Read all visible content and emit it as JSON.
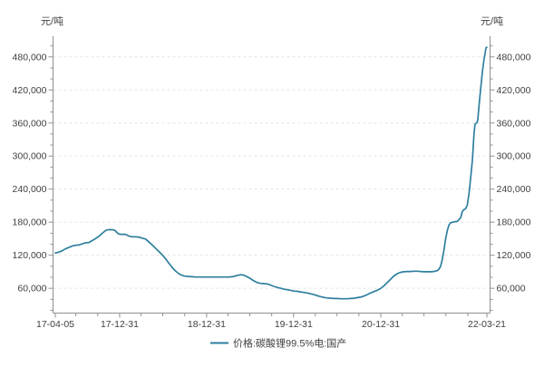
{
  "chart_data": {
    "type": "line",
    "title": "",
    "y_unit_left": "元/吨",
    "y_unit_right": "元/吨",
    "x_tick_labels": [
      "17-04-05",
      "17-12-31",
      "18-12-31",
      "19-12-31",
      "20-12-31",
      "22-03-21"
    ],
    "y_major_ticks": [
      60000,
      120000,
      180000,
      240000,
      300000,
      360000,
      420000,
      480000
    ],
    "y_minor_step": 20000,
    "y_minor_range": [
      20000,
      500000
    ],
    "ylim": [
      15000,
      517500
    ],
    "grid": "horizontal-dashed",
    "legend_position": "bottom-center",
    "colors": {
      "line": "#2e7f9e",
      "axis": "#909090",
      "grid": "#e4e4e4",
      "text": "#404040"
    },
    "series": [
      {
        "name": "价格:碳酸锂99.5%电:国产",
        "color": "#2e7f9e",
        "points": [
          [
            "17-04-05",
            124000
          ],
          [
            "17-04-19",
            125500
          ],
          [
            "17-05-03",
            128000
          ],
          [
            "17-05-17",
            131500
          ],
          [
            "17-05-31",
            134000
          ],
          [
            "17-06-14",
            136500
          ],
          [
            "17-06-28",
            138000
          ],
          [
            "17-07-12",
            138500
          ],
          [
            "17-07-26",
            140500
          ],
          [
            "17-08-09",
            142500
          ],
          [
            "17-08-23",
            143000
          ],
          [
            "17-09-06",
            146500
          ],
          [
            "17-09-20",
            150000
          ],
          [
            "17-10-04",
            154000
          ],
          [
            "17-10-18",
            159500
          ],
          [
            "17-11-01",
            164500
          ],
          [
            "17-11-08",
            166000
          ],
          [
            "17-11-22",
            166500
          ],
          [
            "17-12-06",
            166000
          ],
          [
            "17-12-13",
            164500
          ],
          [
            "17-12-20",
            161000
          ],
          [
            "17-12-27",
            158500
          ],
          [
            "18-01-10",
            158000
          ],
          [
            "18-01-24",
            158000
          ],
          [
            "18-02-07",
            155000
          ],
          [
            "18-02-21",
            153500
          ],
          [
            "18-03-07",
            153500
          ],
          [
            "18-03-21",
            153000
          ],
          [
            "18-04-04",
            151000
          ],
          [
            "18-04-18",
            149500
          ],
          [
            "18-05-02",
            144500
          ],
          [
            "18-05-16",
            139000
          ],
          [
            "18-05-30",
            133000
          ],
          [
            "18-06-13",
            127000
          ],
          [
            "18-06-27",
            121000
          ],
          [
            "18-07-11",
            114000
          ],
          [
            "18-07-25",
            106000
          ],
          [
            "18-08-08",
            98000
          ],
          [
            "18-08-22",
            91500
          ],
          [
            "18-09-05",
            86500
          ],
          [
            "18-09-19",
            83500
          ],
          [
            "18-10-03",
            82000
          ],
          [
            "18-10-17",
            81500
          ],
          [
            "18-10-31",
            81000
          ],
          [
            "18-11-14",
            80500
          ],
          [
            "18-11-28",
            80500
          ],
          [
            "18-12-12",
            80500
          ],
          [
            "18-12-26",
            80500
          ],
          [
            "19-01-09",
            80500
          ],
          [
            "19-01-23",
            80500
          ],
          [
            "19-02-06",
            80500
          ],
          [
            "19-02-20",
            80500
          ],
          [
            "19-03-06",
            80500
          ],
          [
            "19-03-20",
            80500
          ],
          [
            "19-04-03",
            80500
          ],
          [
            "19-04-17",
            81000
          ],
          [
            "19-04-24",
            81500
          ],
          [
            "19-05-08",
            83500
          ],
          [
            "19-05-22",
            84500
          ],
          [
            "19-06-05",
            84000
          ],
          [
            "19-06-19",
            81000
          ],
          [
            "19-07-03",
            77500
          ],
          [
            "19-07-17",
            73500
          ],
          [
            "19-07-31",
            70500
          ],
          [
            "19-08-14",
            69000
          ],
          [
            "19-08-28",
            68500
          ],
          [
            "19-09-11",
            68000
          ],
          [
            "19-09-25",
            66000
          ],
          [
            "19-10-09",
            63500
          ],
          [
            "19-10-23",
            61500
          ],
          [
            "19-11-06",
            60000
          ],
          [
            "19-11-20",
            58500
          ],
          [
            "19-12-04",
            57500
          ],
          [
            "19-12-18",
            56500
          ],
          [
            "20-01-01",
            55000
          ],
          [
            "20-01-15",
            54500
          ],
          [
            "20-01-29",
            53500
          ],
          [
            "20-02-12",
            52500
          ],
          [
            "20-02-26",
            51500
          ],
          [
            "20-03-11",
            50000
          ],
          [
            "20-03-25",
            48500
          ],
          [
            "20-04-08",
            46500
          ],
          [
            "20-04-22",
            45000
          ],
          [
            "20-05-06",
            43500
          ],
          [
            "20-05-20",
            42500
          ],
          [
            "20-06-03",
            42000
          ],
          [
            "20-06-17",
            41500
          ],
          [
            "20-07-01",
            41500
          ],
          [
            "20-07-15",
            41000
          ],
          [
            "20-07-29",
            41000
          ],
          [
            "20-08-12",
            41000
          ],
          [
            "20-08-26",
            41500
          ],
          [
            "20-09-09",
            42000
          ],
          [
            "20-09-23",
            43000
          ],
          [
            "20-10-07",
            44000
          ],
          [
            "20-10-21",
            46000
          ],
          [
            "20-11-04",
            48500
          ],
          [
            "20-11-18",
            51500
          ],
          [
            "20-12-02",
            54000
          ],
          [
            "20-12-16",
            56500
          ],
          [
            "20-12-30",
            59500
          ],
          [
            "21-01-13",
            64500
          ],
          [
            "21-01-27",
            70500
          ],
          [
            "21-02-10",
            76500
          ],
          [
            "21-02-24",
            82500
          ],
          [
            "21-03-10",
            86500
          ],
          [
            "21-03-24",
            89000
          ],
          [
            "21-04-07",
            90000
          ],
          [
            "21-04-21",
            90500
          ],
          [
            "21-05-05",
            90500
          ],
          [
            "21-05-19",
            91000
          ],
          [
            "21-06-02",
            91000
          ],
          [
            "21-06-16",
            90500
          ],
          [
            "21-06-30",
            90000
          ],
          [
            "21-07-14",
            90000
          ],
          [
            "21-07-28",
            90000
          ],
          [
            "21-08-11",
            90500
          ],
          [
            "21-08-25",
            92000
          ],
          [
            "21-09-01",
            95000
          ],
          [
            "21-09-08",
            100000
          ],
          [
            "21-09-15",
            112000
          ],
          [
            "21-09-22",
            130000
          ],
          [
            "21-09-29",
            150000
          ],
          [
            "21-10-06",
            165000
          ],
          [
            "21-10-13",
            175000
          ],
          [
            "21-10-20",
            179000
          ],
          [
            "21-11-03",
            180500
          ],
          [
            "21-11-17",
            181500
          ],
          [
            "21-12-01",
            188000
          ],
          [
            "21-12-08",
            199500
          ],
          [
            "21-12-15",
            203000
          ],
          [
            "21-12-22",
            204500
          ],
          [
            "21-12-29",
            211000
          ],
          [
            "22-01-05",
            232000
          ],
          [
            "22-01-12",
            260000
          ],
          [
            "22-01-19",
            292000
          ],
          [
            "22-01-26",
            340000
          ],
          [
            "22-01-30",
            358000
          ],
          [
            "22-02-08",
            361000
          ],
          [
            "22-02-11",
            366000
          ],
          [
            "22-02-16",
            391000
          ],
          [
            "22-02-23",
            423000
          ],
          [
            "22-03-02",
            452000
          ],
          [
            "22-03-09",
            475000
          ],
          [
            "22-03-14",
            488000
          ],
          [
            "22-03-16",
            494000
          ],
          [
            "22-03-18",
            497000
          ],
          [
            "22-03-21",
            497500
          ]
        ]
      }
    ]
  }
}
